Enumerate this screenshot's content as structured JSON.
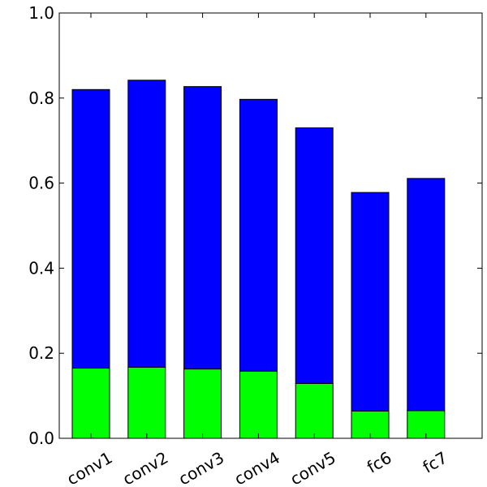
{
  "chart_data": {
    "type": "bar",
    "stacked": true,
    "categories": [
      "conv1",
      "conv2",
      "conv3",
      "conv4",
      "conv5",
      "fc6",
      "fc7"
    ],
    "series": [
      {
        "color": "#00ff00",
        "values": [
          0.165,
          0.167,
          0.163,
          0.158,
          0.129,
          0.064,
          0.065
        ]
      },
      {
        "color": "#0000ff",
        "values": [
          0.655,
          0.675,
          0.664,
          0.639,
          0.601,
          0.514,
          0.546
        ]
      }
    ],
    "totals": [
      0.82,
      0.842,
      0.827,
      0.797,
      0.73,
      0.578,
      0.611
    ],
    "ylim": [
      0.0,
      1.0
    ],
    "yticks": [
      "0.0",
      "0.2",
      "0.4",
      "0.6",
      "0.8",
      "1.0"
    ],
    "grid": false,
    "title": "",
    "xlabel": "",
    "ylabel": ""
  }
}
